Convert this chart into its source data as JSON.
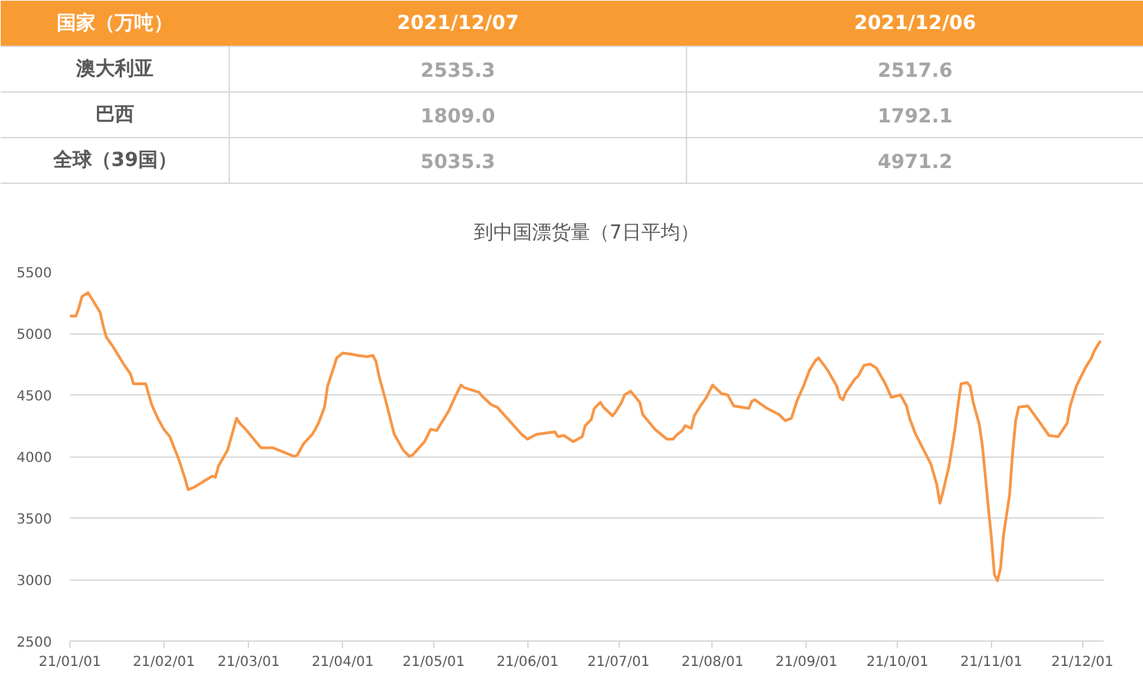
{
  "chart_data": [
    {
      "type": "other",
      "ylabel": "国家（万吨）",
      "categories": [
        "澳大利亚",
        "巴西",
        "全球（39国）"
      ],
      "series": [
        {
          "name": "2021/12/07",
          "values": [
            2535.3,
            1809.0,
            5035.3
          ],
          "value_labels": [
            "2535.3",
            "1809.0",
            "5035.3"
          ]
        },
        {
          "name": "2021/12/06",
          "values": [
            2517.6,
            1792.1,
            4971.2
          ],
          "value_labels": [
            "2517.6",
            "1792.1",
            "4971.2"
          ]
        }
      ]
    },
    {
      "type": "line",
      "title": "到中国漂货量（7日平均）",
      "color": "#f79646",
      "grid": "y",
      "x": [
        "2021-01-01",
        "2021-01-03",
        "2021-01-04",
        "2021-01-05",
        "2021-01-07",
        "2021-01-09",
        "2021-01-11",
        "2021-01-12",
        "2021-01-13",
        "2021-01-15",
        "2021-01-19",
        "2021-01-21",
        "2021-01-22",
        "2021-01-26",
        "2021-01-28",
        "2021-01-30",
        "2021-02-01",
        "2021-02-03",
        "2021-02-06",
        "2021-02-08",
        "2021-02-09",
        "2021-02-11",
        "2021-02-15",
        "2021-02-17",
        "2021-02-18",
        "2021-02-19",
        "2021-02-22",
        "2021-02-25",
        "2021-02-26",
        "2021-02-28",
        "2021-03-02",
        "2021-03-05",
        "2021-03-09",
        "2021-03-13",
        "2021-03-16",
        "2021-03-17",
        "2021-03-19",
        "2021-03-22",
        "2021-03-24",
        "2021-03-26",
        "2021-03-27",
        "2021-03-29",
        "2021-03-30",
        "2021-04-01",
        "2021-04-04",
        "2021-04-06",
        "2021-04-09",
        "2021-04-11",
        "2021-04-12",
        "2021-04-13",
        "2021-04-15",
        "2021-04-18",
        "2021-04-21",
        "2021-04-23",
        "2021-04-24",
        "2021-04-28",
        "2021-04-30",
        "2021-05-02",
        "2021-05-06",
        "2021-05-08",
        "2021-05-10",
        "2021-05-11",
        "2021-05-16",
        "2021-05-17",
        "2021-05-20",
        "2021-05-22",
        "2021-05-26",
        "2021-05-30",
        "2021-06-01",
        "2021-06-04",
        "2021-06-07",
        "2021-06-10",
        "2021-06-11",
        "2021-06-13",
        "2021-06-16",
        "2021-06-19",
        "2021-06-20",
        "2021-06-22",
        "2021-06-23",
        "2021-06-25",
        "2021-06-26",
        "2021-06-29",
        "2021-06-30",
        "2021-07-02",
        "2021-07-03",
        "2021-07-05",
        "2021-07-08",
        "2021-07-09",
        "2021-07-13",
        "2021-07-17",
        "2021-07-19",
        "2021-07-20",
        "2021-07-22",
        "2021-07-23",
        "2021-07-25",
        "2021-07-26",
        "2021-07-28",
        "2021-07-30",
        "2021-08-01",
        "2021-08-04",
        "2021-08-06",
        "2021-08-08",
        "2021-08-13",
        "2021-08-14",
        "2021-08-15",
        "2021-08-19",
        "2021-08-23",
        "2021-08-25",
        "2021-08-27",
        "2021-08-29",
        "2021-08-31",
        "2021-09-02",
        "2021-09-04",
        "2021-09-05",
        "2021-09-08",
        "2021-09-11",
        "2021-09-12",
        "2021-09-13",
        "2021-09-14",
        "2021-09-17",
        "2021-09-18",
        "2021-09-20",
        "2021-09-22",
        "2021-09-24",
        "2021-09-27",
        "2021-09-29",
        "2021-10-02",
        "2021-10-04",
        "2021-10-05",
        "2021-10-07",
        "2021-10-12",
        "2021-10-14",
        "2021-10-15",
        "2021-10-16",
        "2021-10-18",
        "2021-10-20",
        "2021-10-21",
        "2021-10-22",
        "2021-10-24",
        "2021-10-25",
        "2021-10-26",
        "2021-10-28",
        "2021-10-29",
        "2021-10-30",
        "2021-10-31",
        "2021-11-01",
        "2021-11-02",
        "2021-11-03",
        "2021-11-04",
        "2021-11-05",
        "2021-11-07",
        "2021-11-08",
        "2021-11-09",
        "2021-11-10",
        "2021-11-13",
        "2021-11-16",
        "2021-11-20",
        "2021-11-23",
        "2021-11-26",
        "2021-11-27",
        "2021-11-29",
        "2021-11-30",
        "2021-12-02",
        "2021-12-04",
        "2021-12-05",
        "2021-12-07"
      ],
      "values": [
        5140,
        5140,
        5210,
        5300,
        5330,
        5250,
        5170,
        5060,
        4970,
        4900,
        4740,
        4670,
        4590,
        4590,
        4420,
        4310,
        4220,
        4160,
        3970,
        3820,
        3730,
        3750,
        3810,
        3840,
        3830,
        3920,
        4050,
        4310,
        4270,
        4220,
        4160,
        4070,
        4070,
        4030,
        4000,
        4010,
        4100,
        4180,
        4270,
        4400,
        4570,
        4720,
        4800,
        4840,
        4830,
        4820,
        4810,
        4820,
        4770,
        4650,
        4470,
        4180,
        4050,
        4000,
        4010,
        4120,
        4220,
        4210,
        4370,
        4480,
        4580,
        4560,
        4520,
        4490,
        4420,
        4400,
        4290,
        4180,
        4140,
        4180,
        4190,
        4200,
        4160,
        4170,
        4120,
        4160,
        4250,
        4300,
        4390,
        4440,
        4400,
        4330,
        4360,
        4440,
        4500,
        4530,
        4440,
        4340,
        4220,
        4140,
        4140,
        4170,
        4210,
        4250,
        4230,
        4330,
        4410,
        4480,
        4580,
        4510,
        4500,
        4410,
        4390,
        4450,
        4460,
        4390,
        4340,
        4290,
        4310,
        4460,
        4570,
        4700,
        4780,
        4800,
        4700,
        4570,
        4480,
        4460,
        4520,
        4630,
        4650,
        4740,
        4750,
        4720,
        4590,
        4480,
        4500,
        4410,
        4310,
        4180,
        3940,
        3770,
        3620,
        3710,
        3920,
        4220,
        4420,
        4590,
        4600,
        4570,
        4440,
        4260,
        4090,
        3840,
        3580,
        3340,
        3040,
        2990,
        3090,
        3360,
        3690,
        4030,
        4290,
        4400,
        4410,
        4310,
        4170,
        4160,
        4270,
        4410,
        4570,
        4620,
        4720,
        4800,
        4860,
        4940
      ],
      "xlim": [
        "2021-01-01",
        "2021-12-08"
      ],
      "xticks": [
        {
          "value": "2021-01-01",
          "label": "21/01/01"
        },
        {
          "value": "2021-02-01",
          "label": "21/02/01"
        },
        {
          "value": "2021-03-01",
          "label": "21/03/01"
        },
        {
          "value": "2021-04-01",
          "label": "21/04/01"
        },
        {
          "value": "2021-05-01",
          "label": "21/05/01"
        },
        {
          "value": "2021-06-01",
          "label": "21/06/01"
        },
        {
          "value": "2021-07-01",
          "label": "21/07/01"
        },
        {
          "value": "2021-08-01",
          "label": "21/08/01"
        },
        {
          "value": "2021-09-01",
          "label": "21/09/01"
        },
        {
          "value": "2021-10-01",
          "label": "21/10/01"
        },
        {
          "value": "2021-11-01",
          "label": "21/11/01"
        },
        {
          "value": "2021-12-01",
          "label": "21/12/01"
        }
      ],
      "ylim": [
        2500,
        5500
      ],
      "yticks": [
        2500,
        3000,
        3500,
        4000,
        4500,
        5000,
        5500
      ]
    }
  ]
}
